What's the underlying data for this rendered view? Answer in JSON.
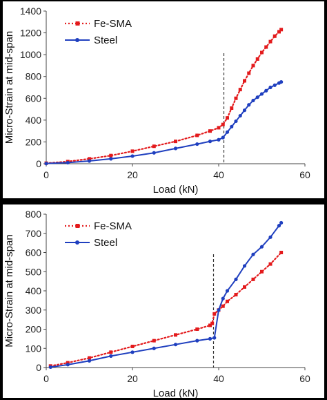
{
  "chart_data": [
    {
      "type": "line",
      "xlabel": "Load (kN)",
      "ylabel": "Micro-Strain at mid-span",
      "xlim": [
        0,
        60
      ],
      "ylim": [
        0,
        1400
      ],
      "xticks": [
        0,
        20,
        40,
        60
      ],
      "yticks": [
        0,
        200,
        400,
        600,
        800,
        1000,
        1200,
        1400
      ],
      "grid": "none",
      "legend_position": "top-left",
      "reference_line": {
        "x": 41.2,
        "style": "dashed"
      },
      "series": [
        {
          "name": "Fe-SMA",
          "color": "#e31a1c",
          "style": "dotted-square-markers",
          "x": [
            0,
            5,
            10,
            15,
            20,
            25,
            30,
            35,
            38,
            40,
            41,
            42,
            43,
            44,
            45,
            46,
            47,
            48,
            49,
            50,
            51,
            52,
            53,
            54,
            54.5
          ],
          "y": [
            5,
            20,
            45,
            75,
            115,
            160,
            205,
            260,
            300,
            330,
            360,
            420,
            510,
            600,
            680,
            760,
            830,
            900,
            960,
            1020,
            1070,
            1120,
            1170,
            1210,
            1230
          ]
        },
        {
          "name": "Steel",
          "color": "#1f3fbf",
          "style": "solid-dot-markers",
          "x": [
            0,
            5,
            10,
            15,
            20,
            25,
            30,
            35,
            38,
            40,
            41,
            42,
            43,
            44,
            45,
            46,
            47,
            48,
            49,
            50,
            51,
            52,
            53,
            54,
            54.5
          ],
          "y": [
            2,
            10,
            25,
            45,
            70,
            100,
            140,
            180,
            205,
            220,
            240,
            290,
            340,
            390,
            440,
            490,
            540,
            580,
            610,
            640,
            670,
            700,
            720,
            740,
            750
          ]
        }
      ]
    },
    {
      "type": "line",
      "xlabel": "Load (kN)",
      "ylabel": "Micro-Strain at mid-span",
      "xlim": [
        0,
        60
      ],
      "ylim": [
        0,
        800
      ],
      "xticks": [
        0,
        20,
        40,
        60
      ],
      "yticks": [
        0,
        100,
        200,
        300,
        400,
        500,
        600,
        700,
        800
      ],
      "grid": "none",
      "legend_position": "top-left",
      "reference_line": {
        "x": 38.8,
        "style": "dashed"
      },
      "series": [
        {
          "name": "Fe-SMA",
          "color": "#e31a1c",
          "style": "dotted-square-markers",
          "x": [
            1,
            5,
            10,
            15,
            20,
            25,
            30,
            35,
            38,
            38.5,
            39,
            40,
            41,
            42,
            44,
            46,
            48,
            50,
            52,
            54.5
          ],
          "y": [
            8,
            25,
            50,
            80,
            110,
            140,
            170,
            200,
            220,
            230,
            280,
            300,
            320,
            345,
            380,
            420,
            460,
            500,
            540,
            600
          ]
        },
        {
          "name": "Steel",
          "color": "#1f3fbf",
          "style": "solid-dot-markers",
          "x": [
            1,
            5,
            10,
            15,
            20,
            25,
            30,
            35,
            38,
            39,
            40,
            41,
            42,
            44,
            46,
            48,
            50,
            52,
            54,
            54.5
          ],
          "y": [
            2,
            15,
            35,
            60,
            80,
            100,
            120,
            140,
            150,
            155,
            300,
            360,
            400,
            460,
            530,
            590,
            630,
            680,
            740,
            755
          ]
        }
      ]
    }
  ]
}
